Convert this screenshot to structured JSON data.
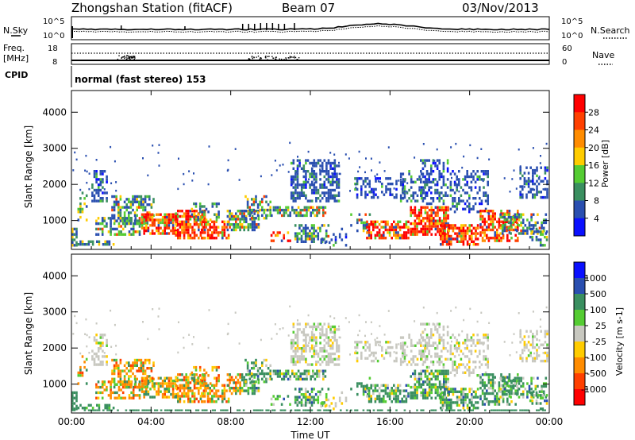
{
  "header": {
    "title": "Zhongshan Station (fitACF)",
    "beam": "Beam 07",
    "date": "03/Nov/2013",
    "mode": "normal (fast stereo) 153"
  },
  "side_labels": {
    "nsky": "N.Sky",
    "nsearch": "N.Search",
    "freq_line1": "Freq.",
    "freq_line2": "[MHz]",
    "nave": "Nave",
    "cpid": "CPID"
  },
  "top_axes": {
    "nsky_ticks": [
      "10^5",
      "10^0"
    ],
    "nsearch_ticks": [
      "10^5",
      "10^0"
    ],
    "freq_ticks": [
      "18",
      "8"
    ],
    "nave_ticks": [
      "60",
      "0"
    ]
  },
  "chart_data": [
    {
      "type": "heatmap",
      "panel": "power",
      "ylabel": "Slant Range [km]",
      "ylim": [
        200,
        4600
      ],
      "y_ticks": [
        1000,
        2000,
        3000,
        4000
      ],
      "colorbar_label": "Power [dB]",
      "colorbar_ticks": [
        "28",
        "24",
        "20",
        "16",
        "12",
        "8",
        "4"
      ],
      "colorbar_colors": [
        "#ff0000",
        "#ff4000",
        "#ff8c00",
        "#ffcc00",
        "#55cc33",
        "#3a8f60",
        "#2a4fb0",
        "#0a10ff"
      ]
    },
    {
      "type": "heatmap",
      "panel": "velocity",
      "xlabel": "Time UT",
      "ylabel": "Slant Range [km]",
      "ylim": [
        200,
        4600
      ],
      "y_ticks": [
        1000,
        2000,
        3000,
        4000
      ],
      "x_ticks": [
        "00:00",
        "04:00",
        "08:00",
        "12:00",
        "16:00",
        "20:00",
        "00:00"
      ],
      "colorbar_label": "Velocity [m s-1]",
      "colorbar_ticks": [
        "1000",
        "500",
        "100",
        "25",
        "-25",
        "-100",
        "-500",
        "-1000"
      ],
      "colorbar_colors": [
        "#0a10ff",
        "#2a4fb0",
        "#3a8f60",
        "#55cc33",
        "#c8c8c0",
        "#ffcc00",
        "#ff8c00",
        "#ff4000",
        "#ff0000"
      ]
    }
  ]
}
